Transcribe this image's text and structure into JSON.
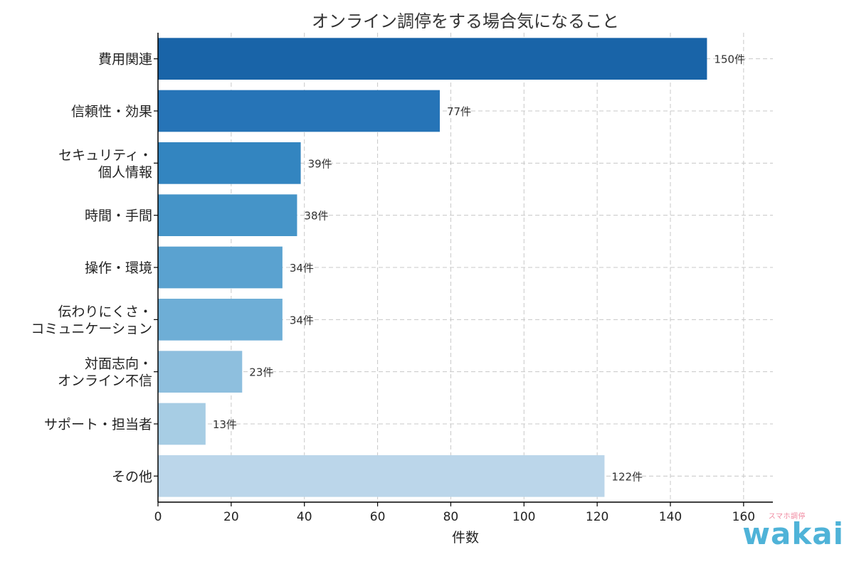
{
  "chart_data": {
    "type": "bar",
    "orientation": "horizontal",
    "title": "オンライン調停をする場合気になること",
    "xlabel": "件数",
    "ylabel": "",
    "xlim": [
      0,
      168
    ],
    "xticks": [
      0,
      20,
      40,
      60,
      80,
      100,
      120,
      140,
      160
    ],
    "grid": true,
    "value_suffix": "件",
    "categories": [
      [
        "費用関連"
      ],
      [
        "信頼性・効果"
      ],
      [
        "セキュリティ・",
        "個人情報"
      ],
      [
        "時間・手間"
      ],
      [
        "操作・環境"
      ],
      [
        "伝わりにくさ・",
        "コミュニケーション"
      ],
      [
        "対面志向・",
        "オンライン不信"
      ],
      [
        "サポート・担当者"
      ],
      [
        "その他"
      ]
    ],
    "values": [
      150,
      77,
      39,
      38,
      34,
      34,
      23,
      13,
      122
    ],
    "value_labels": [
      "150件",
      "77件",
      "39件",
      "38件",
      "34件",
      "34件",
      "23件",
      "13件",
      "122件"
    ],
    "colors": [
      "#1964a8",
      "#2674b7",
      "#3385c0",
      "#4594c8",
      "#5aa2d0",
      "#6eaed6",
      "#8ebfde",
      "#a7cde4",
      "#bbd6ea"
    ]
  },
  "logo": {
    "sub": "スマホ調停",
    "main": "wakai"
  }
}
